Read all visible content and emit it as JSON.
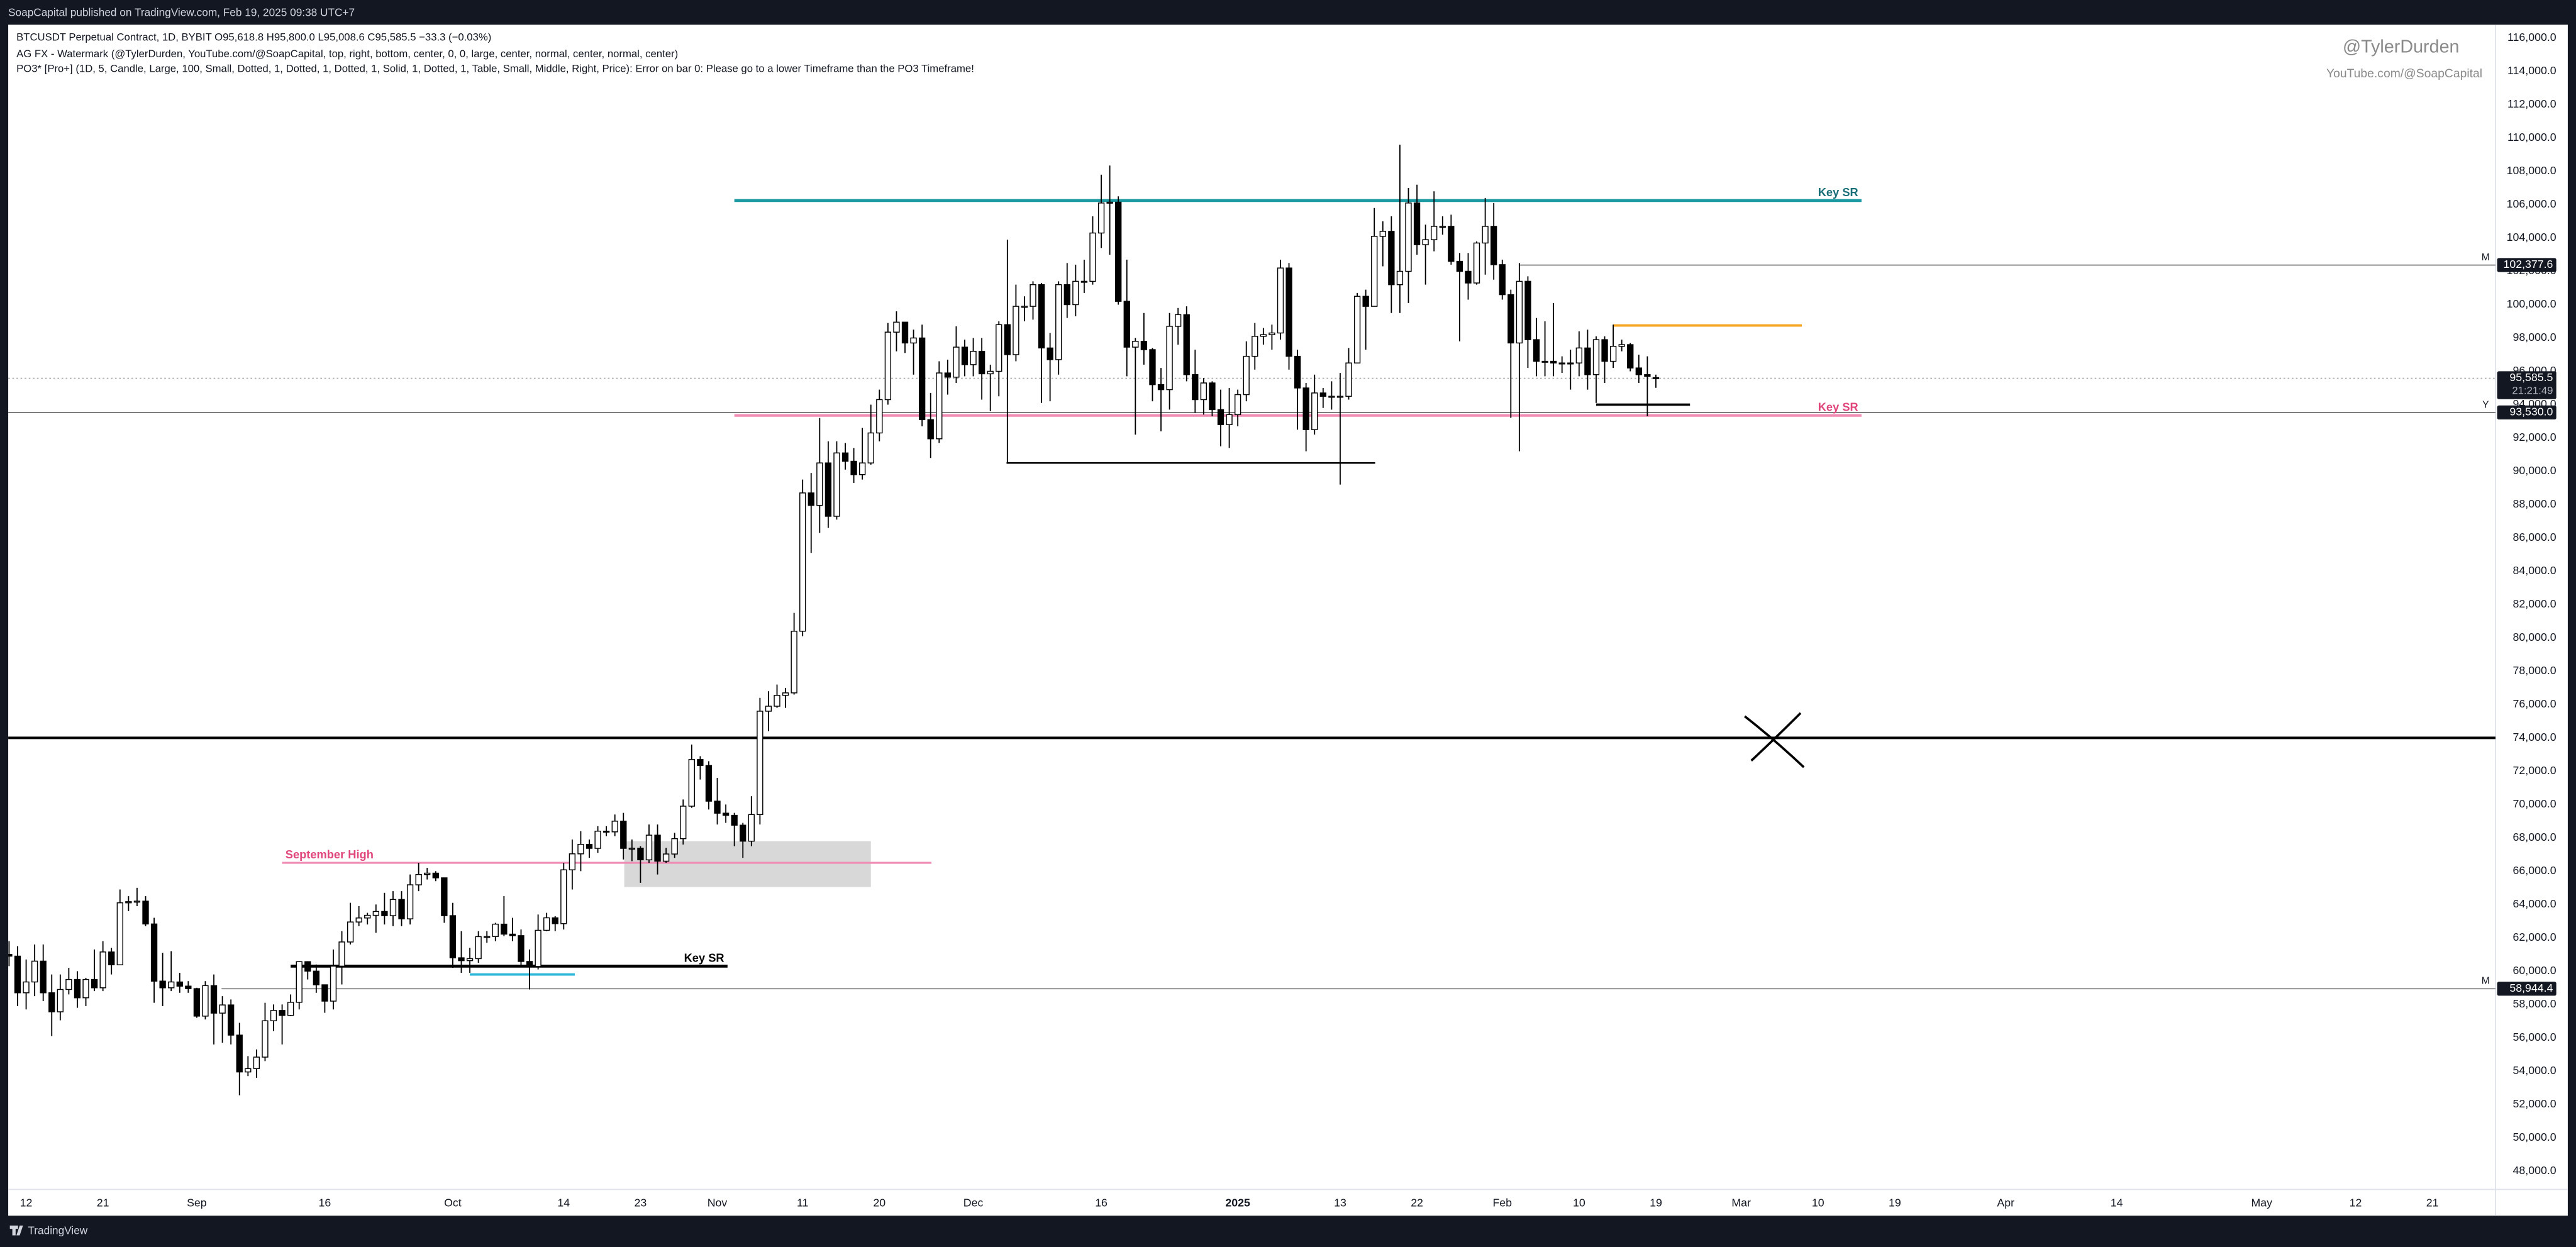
{
  "header": {
    "published": "SoapCapital published on TradingView.com, Feb 19, 2025 09:38 UTC+7",
    "brand": "TradingView"
  },
  "chart_data": {
    "type": "candlestick",
    "legend_lines": [
      "BTCUSDT Perpetual Contract, 1D, BYBIT  O95,618.8  H95,800.0  L95,008.6  C95,585.5  −33.3 (−0.03%)",
      "AG FX - Watermark (@TylerDurden, YouTube.com/@SoapCapital, top, right, bottom, center, 0, 0, large, center, normal, center, normal, center)",
      "PO3* [Pro+] (1D, 5, Candle, Large, 100, Small, Dotted, 1, Dotted, 1, Dotted, 1, Solid, 1, Dotted, 1, Table, Small, Middle, Right, Price): Error on bar 0: Please go to a lower Timeframe than the PO3 Timeframe!"
    ],
    "watermark": [
      "@TylerDurden",
      "YouTube.com/@SoapCapital"
    ],
    "up_color": "#ffffff",
    "down_color": "#000000",
    "wick_color": "#000000",
    "open": [
      61000,
      60900,
      58700,
      59350,
      60600,
      58700,
      57560,
      58900,
      59500,
      58400,
      59500,
      59000,
      61150,
      60380,
      64100,
      64170,
      64200,
      62830,
      59400,
      59000,
      59350,
      59100,
      58950,
      57300,
      59130,
      57480,
      57970,
      56160,
      53950,
      54150,
      54840,
      57020,
      57640,
      57340,
      58130,
      60570,
      60000,
      59180,
      58200,
      60300,
      61750,
      62950,
      63190,
      63350,
      63580,
      63330,
      64300,
      63140,
      65180,
      65800,
      65880,
      65600,
      63330,
      60800,
      60630,
      60750,
      62070,
      62080,
      62820,
      62220,
      62130,
      60580,
      60280,
      62450,
      63200,
      62850,
      66080,
      67040,
      67610,
      67370,
      68400,
      68360,
      69000,
      67370,
      67380,
      66680,
      68160,
      66600,
      67030,
      67950,
      69900,
      72700,
      72340,
      70200,
      69480,
      69350,
      68760,
      67800,
      69400,
      75600,
      75900,
      76550,
      76700,
      80400,
      88700,
      87950,
      90500,
      87300,
      91100,
      90600,
      89800,
      90500,
      92300,
      94300,
      98350,
      98950,
      97700,
      98000,
      93100,
      91950,
      95900,
      95650,
      97450,
      96400,
      97200,
      95850,
      96000,
      98800,
      97000,
      99900,
      99900,
      101200,
      97400,
      96700,
      101200,
      100000,
      101400,
      101400,
      104300,
      106100,
      106150,
      100200,
      97450,
      97800,
      97300,
      95200,
      94900,
      98700,
      99400,
      95800,
      94300,
      95300,
      93700,
      92800,
      93400,
      94600,
      96900,
      98100,
      98200,
      98300,
      102200,
      96900,
      95000,
      92500,
      94700,
      94500,
      94500,
      94500,
      96500,
      100500,
      99900,
      104100,
      104400,
      101200,
      102000,
      106100,
      103600,
      103900,
      104700,
      104700,
      102600,
      102000,
      101300,
      103700,
      104700,
      102400,
      100600,
      97700,
      101400,
      97900,
      96600,
      96600,
      96500,
      96500,
      96500,
      97400,
      95800,
      97900,
      96600,
      97500,
      97600,
      96200,
      95800,
      95618.8
    ],
    "high": [
      61800,
      61500,
      60700,
      61600,
      61600,
      59800,
      59800,
      60200,
      60000,
      59600,
      61300,
      61800,
      61400,
      64900,
      64500,
      65000,
      64500,
      63200,
      61100,
      61200,
      59900,
      59400,
      59000,
      59400,
      59800,
      58500,
      58300,
      56900,
      54900,
      55300,
      58100,
      58000,
      58000,
      58600,
      60600,
      60600,
      60400,
      59200,
      61300,
      62400,
      64100,
      63900,
      63500,
      64000,
      64700,
      64800,
      64800,
      65800,
      66500,
      66200,
      66000,
      65600,
      64100,
      62400,
      61400,
      62400,
      62400,
      62900,
      64500,
      63200,
      62500,
      61300,
      63400,
      63500,
      63300,
      66500,
      67900,
      68400,
      67900,
      68700,
      68700,
      69400,
      69500,
      67900,
      67500,
      68800,
      68800,
      67400,
      68300,
      70300,
      73600,
      72900,
      72600,
      71600,
      70000,
      69500,
      68900,
      70500,
      76400,
      76800,
      77200,
      77000,
      81500,
      89500,
      89900,
      93200,
      91800,
      91800,
      91700,
      91400,
      92600,
      94000,
      94900,
      98900,
      99600,
      98700,
      98500,
      98800,
      94700,
      96600,
      96700,
      98700,
      97900,
      98000,
      98000,
      96400,
      99000,
      103900,
      101200,
      100500,
      101400,
      101300,
      98300,
      101400,
      102500,
      102400,
      102700,
      105300,
      107800,
      108350,
      106500,
      102700,
      98000,
      99500,
      97400,
      96200,
      99500,
      99800,
      99900,
      97300,
      95600,
      95400,
      94900,
      95000,
      94900,
      97800,
      98900,
      98600,
      98800,
      102700,
      102500,
      97300,
      95300,
      95800,
      95000,
      95400,
      95900,
      97400,
      100700,
      100900,
      105800,
      105000,
      105300,
      109600,
      107000,
      107200,
      104800,
      106800,
      105300,
      105400,
      103100,
      103100,
      103800,
      106400,
      106100,
      102700,
      100900,
      102500,
      101700,
      99200,
      99000,
      100100,
      96900,
      97300,
      98400,
      98500,
      98100,
      98100,
      98800,
      97900,
      97700,
      97000,
      96900,
      95800
    ],
    "low": [
      60300,
      57900,
      57700,
      58500,
      58200,
      56100,
      57050,
      58600,
      57800,
      57900,
      58800,
      58800,
      59800,
      60350,
      63600,
      63900,
      62700,
      58100,
      57900,
      58800,
      58700,
      58700,
      57200,
      57100,
      55600,
      55700,
      55600,
      52550,
      53700,
      53600,
      54600,
      56400,
      55600,
      57300,
      57700,
      59500,
      58700,
      57500,
      57700,
      59200,
      61600,
      62700,
      62800,
      62300,
      62800,
      62700,
      62700,
      62800,
      64800,
      65500,
      65400,
      62900,
      60200,
      59900,
      59900,
      60500,
      61700,
      61800,
      62100,
      61800,
      60300,
      58900,
      60100,
      62400,
      62400,
      62500,
      64900,
      66000,
      66800,
      67100,
      68100,
      68100,
      66700,
      66600,
      65300,
      66500,
      65800,
      66500,
      66800,
      67600,
      69800,
      71500,
      69700,
      68800,
      68900,
      67500,
      66800,
      67500,
      68800,
      74400,
      75800,
      75800,
      76600,
      80100,
      85100,
      86300,
      86600,
      87100,
      90100,
      89300,
      89500,
      90400,
      91800,
      94000,
      97200,
      97100,
      95800,
      92700,
      90800,
      91700,
      94600,
      95300,
      95700,
      95700,
      94300,
      93600,
      94500,
      90500,
      96600,
      99000,
      99100,
      94100,
      94200,
      95800,
      99200,
      99300,
      100700,
      101200,
      103400,
      103000,
      100000,
      95700,
      92200,
      96400,
      94200,
      92400,
      93700,
      97600,
      95400,
      93500,
      93400,
      93300,
      91500,
      91400,
      92700,
      94200,
      96100,
      97600,
      97300,
      97900,
      96100,
      92500,
      91200,
      92200,
      93800,
      93700,
      89200,
      94300,
      96500,
      97300,
      99900,
      102300,
      99500,
      99500,
      100100,
      103000,
      101200,
      103200,
      104200,
      102400,
      97800,
      100300,
      101200,
      101800,
      101500,
      100300,
      93200,
      91200,
      96200,
      95700,
      95700,
      95700,
      95900,
      94900,
      95700,
      94900,
      94100,
      95300,
      96200,
      97200,
      96000,
      95300,
      93300,
      95008.6
    ],
    "close": [
      60900,
      58700,
      59350,
      60600,
      58700,
      57560,
      58900,
      59500,
      58400,
      59500,
      59000,
      61150,
      60380,
      64100,
      64170,
      64200,
      62830,
      59400,
      59000,
      59350,
      59100,
      58950,
      57300,
      59130,
      57480,
      57970,
      56160,
      53950,
      54150,
      54840,
      57020,
      57640,
      57340,
      58130,
      60570,
      60000,
      59180,
      58200,
      60300,
      61750,
      62950,
      63190,
      63350,
      63580,
      63330,
      64300,
      63140,
      65180,
      65800,
      65880,
      65600,
      63330,
      60800,
      60630,
      60750,
      62070,
      62080,
      62820,
      62220,
      62130,
      60580,
      60280,
      62450,
      63200,
      62850,
      66080,
      67040,
      67610,
      67370,
      68400,
      68360,
      69000,
      67370,
      67380,
      66680,
      68160,
      66600,
      67030,
      67950,
      69900,
      72700,
      72340,
      70200,
      69480,
      69350,
      68760,
      67800,
      69400,
      75600,
      75900,
      76550,
      76700,
      80400,
      88700,
      87950,
      90500,
      87300,
      91100,
      90600,
      89800,
      90500,
      92300,
      94300,
      98350,
      98950,
      97700,
      98000,
      93100,
      91950,
      95900,
      95650,
      97450,
      96400,
      97200,
      95850,
      96000,
      98800,
      97000,
      99900,
      99900,
      101200,
      97400,
      96700,
      101200,
      100000,
      101400,
      101400,
      104300,
      106100,
      106150,
      100200,
      97450,
      97800,
      97300,
      95200,
      94900,
      98700,
      99400,
      95800,
      94300,
      95300,
      93700,
      92800,
      93400,
      94600,
      96900,
      98100,
      98200,
      98300,
      102200,
      96900,
      95000,
      92500,
      94700,
      94500,
      94500,
      94500,
      96500,
      100500,
      99900,
      104100,
      104400,
      101200,
      102000,
      106100,
      103600,
      103900,
      104700,
      104700,
      102600,
      102000,
      101300,
      103700,
      104700,
      102400,
      100600,
      97700,
      101400,
      97900,
      96600,
      96600,
      96500,
      96500,
      96500,
      97400,
      95800,
      97900,
      96600,
      97500,
      97600,
      96200,
      95800,
      95700,
      95585.5
    ],
    "xlim": [
      -0.1,
      291.4
    ],
    "xticks": [
      {
        "value": 2,
        "label": "12"
      },
      {
        "value": 11,
        "label": "21"
      },
      {
        "value": 22,
        "label": "Sep"
      },
      {
        "value": 37,
        "label": "16"
      },
      {
        "value": 52,
        "label": "Oct"
      },
      {
        "value": 65,
        "label": "14"
      },
      {
        "value": 74,
        "label": "23"
      },
      {
        "value": 83,
        "label": "Nov"
      },
      {
        "value": 93,
        "label": "11"
      },
      {
        "value": 102,
        "label": "20"
      },
      {
        "value": 113,
        "label": "Dec"
      },
      {
        "value": 128,
        "label": "16"
      },
      {
        "value": 144,
        "label": "2025",
        "bold": true
      },
      {
        "value": 156,
        "label": "13"
      },
      {
        "value": 165,
        "label": "22"
      },
      {
        "value": 175,
        "label": "Feb"
      },
      {
        "value": 184,
        "label": "10"
      },
      {
        "value": 193,
        "label": "19"
      },
      {
        "value": 203,
        "label": "Mar"
      },
      {
        "value": 212,
        "label": "10"
      },
      {
        "value": 221,
        "label": "19"
      },
      {
        "value": 234,
        "label": "Apr"
      },
      {
        "value": 247,
        "label": "14"
      },
      {
        "value": 264,
        "label": "May"
      },
      {
        "value": 275,
        "label": "12"
      },
      {
        "value": 284,
        "label": "21"
      }
    ],
    "ylim": [
      46900,
      116800
    ],
    "yticks": [
      {
        "value": 48000,
        "label": "48,000.0"
      },
      {
        "value": 50000,
        "label": "50,000.0"
      },
      {
        "value": 52000,
        "label": "52,000.0"
      },
      {
        "value": 54000,
        "label": "54,000.0"
      },
      {
        "value": 56000,
        "label": "56,000.0"
      },
      {
        "value": 58000,
        "label": "58,000.0"
      },
      {
        "value": 60000,
        "label": "60,000.0"
      },
      {
        "value": 62000,
        "label": "62,000.0"
      },
      {
        "value": 64000,
        "label": "64,000.0"
      },
      {
        "value": 66000,
        "label": "66,000.0"
      },
      {
        "value": 68000,
        "label": "68,000.0"
      },
      {
        "value": 70000,
        "label": "70,000.0"
      },
      {
        "value": 72000,
        "label": "72,000.0"
      },
      {
        "value": 74000,
        "label": "74,000.0"
      },
      {
        "value": 76000,
        "label": "76,000.0"
      },
      {
        "value": 78000,
        "label": "78,000.0"
      },
      {
        "value": 80000,
        "label": "80,000.0"
      },
      {
        "value": 82000,
        "label": "82,000.0"
      },
      {
        "value": 84000,
        "label": "84,000.0"
      },
      {
        "value": 86000,
        "label": "86,000.0"
      },
      {
        "value": 88000,
        "label": "88,000.0"
      },
      {
        "value": 90000,
        "label": "90,000.0"
      },
      {
        "value": 92000,
        "label": "92,000.0"
      },
      {
        "value": 94000,
        "label": "94,000.0"
      },
      {
        "value": 96000,
        "label": "96,000.0"
      },
      {
        "value": 98000,
        "label": "98,000.0"
      },
      {
        "value": 100000,
        "label": "100,000.0"
      },
      {
        "value": 102000,
        "label": "102,000.0"
      },
      {
        "value": 104000,
        "label": "104,000.0"
      },
      {
        "value": 106000,
        "label": "106,000.0"
      },
      {
        "value": 108000,
        "label": "108,000.0"
      },
      {
        "value": 110000,
        "label": "110,000.0"
      },
      {
        "value": 112000,
        "label": "112,000.0"
      },
      {
        "value": 114000,
        "label": "114,000.0"
      },
      {
        "value": 116000,
        "label": "116,000.0"
      }
    ],
    "grid": false,
    "drawings": [
      {
        "kind": "rect",
        "y": [
          67800,
          65050
        ],
        "x": [
          72.1,
          101
        ],
        "color": "#d4d4d4"
      },
      {
        "kind": "line",
        "y": 106250,
        "x": [
          85,
          217.1
        ],
        "color": "#1a9aa0",
        "width": 1.8,
        "label": "Key SR",
        "label_color": "#1a6f78",
        "label_pos": "right"
      },
      {
        "kind": "line",
        "y": 93350,
        "x": [
          85,
          217.1
        ],
        "color": "#f08cb4",
        "width": 1.6,
        "label": "Key SR",
        "label_color": "#e0457b",
        "label_pos": "right"
      },
      {
        "kind": "line",
        "y": 90500,
        "x": [
          116.9,
          160.1
        ],
        "color": "#000000",
        "width": 1
      },
      {
        "kind": "line",
        "y": 102377.6,
        "x": [
          177,
          291.4
        ],
        "color": "#555555",
        "width": 0.6,
        "price_label": "102,377.6",
        "tag": "M"
      },
      {
        "kind": "line",
        "y": 93530,
        "x": [
          -0.1,
          291.4
        ],
        "color": "#555555",
        "width": 0.6,
        "price_label": "93,530.0",
        "tag": "Y"
      },
      {
        "kind": "line",
        "y": 58944.4,
        "x": [
          24.9,
          291.4
        ],
        "color": "#777777",
        "width": 0.6,
        "price_label": "58,944.4",
        "tag": "M"
      },
      {
        "kind": "line",
        "y": 66500,
        "x": [
          32,
          108.1
        ],
        "color": "#f08cb4",
        "width": 1.2,
        "label": "September High",
        "label_color": "#e0457b",
        "label_pos": "left"
      },
      {
        "kind": "line",
        "y": 60300,
        "x": [
          33,
          84.2
        ],
        "color": "#000000",
        "width": 1.8,
        "label": "Key SR",
        "label_color": "#000000",
        "label_pos": "right"
      },
      {
        "kind": "line",
        "y": 59800,
        "x": [
          54,
          66.3
        ],
        "color": "#29b6d8",
        "width": 1.4
      },
      {
        "kind": "line",
        "y": 74000,
        "x": [
          -0.1,
          291.4
        ],
        "color": "#000000",
        "width": 1.5
      },
      {
        "kind": "line",
        "y": 98750,
        "x": [
          188,
          210.1
        ],
        "color": "#f5a623",
        "width": 1.5
      },
      {
        "kind": "line",
        "y": 94000,
        "x": [
          186,
          197
        ],
        "color": "#000000",
        "width": 1.4
      },
      {
        "kind": "line",
        "y": 95585.5,
        "x": [
          -0.1,
          291.4
        ],
        "color": "#9a9a9a",
        "width": 0.5,
        "dash": true,
        "price_label": "95,585.5",
        "countdown": "21:21:49"
      }
    ]
  }
}
